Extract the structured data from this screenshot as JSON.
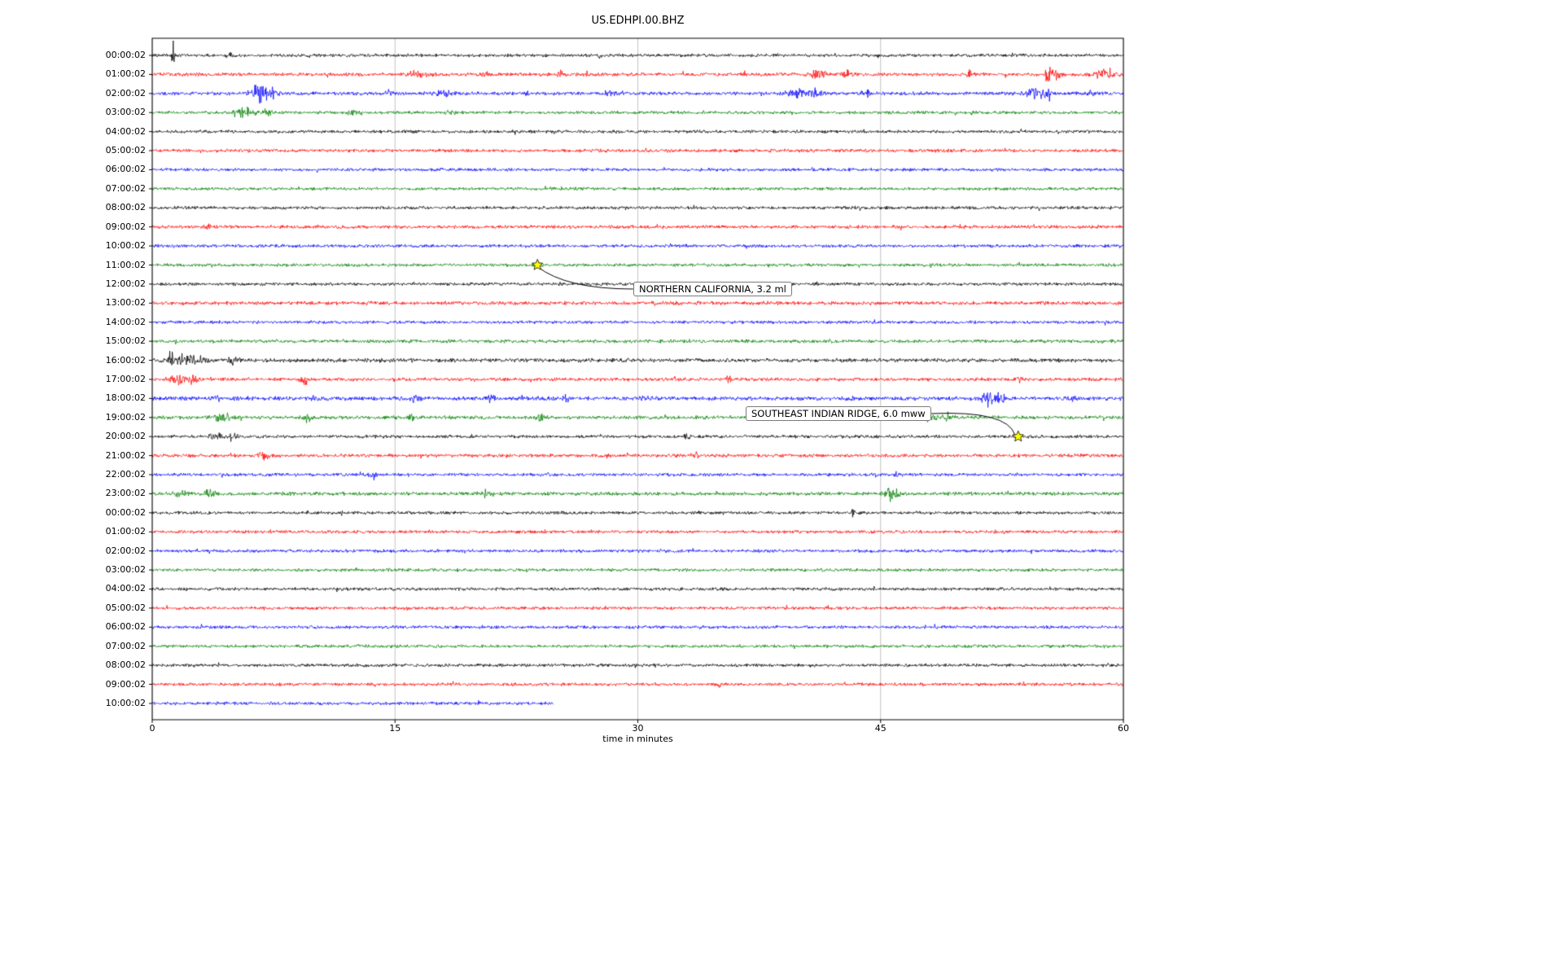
{
  "title": "US.EDHPI.00.BHZ",
  "xlabel": "time in minutes",
  "chart_data": {
    "type": "line",
    "subtype": "seismogram-dayplot",
    "title": "US.EDHPI.00.BHZ",
    "xlabel": "time in minutes",
    "xlim": [
      0,
      60
    ],
    "xticks": [
      "0",
      "15",
      "30",
      "45",
      "60"
    ],
    "grid": true,
    "grid_color": "#b3b3b3",
    "trace_color_cycle": [
      "#000000",
      "#ff0000",
      "#0000ff",
      "#008000"
    ],
    "star_color": "#ffff00",
    "traces": [
      {
        "label": "00:00:02",
        "color": "#000000",
        "amp": 1.0,
        "end": 60,
        "bursts": [
          {
            "t": 1.3,
            "a": 9,
            "w": 0.1
          },
          {
            "t": 4.7,
            "a": 2.5,
            "w": 0.2
          },
          {
            "t": 27.6,
            "a": 2.2,
            "w": 0.15
          }
        ]
      },
      {
        "label": "01:00:02",
        "color": "#ff0000",
        "amp": 1.1,
        "end": 60,
        "bursts": [
          {
            "t": 16.3,
            "a": 3,
            "w": 0.4
          },
          {
            "t": 17.2,
            "a": 2.5,
            "w": 0.2
          },
          {
            "t": 20.6,
            "a": 2.2,
            "w": 0.2
          },
          {
            "t": 25.2,
            "a": 3,
            "w": 0.15
          },
          {
            "t": 26.8,
            "a": 2.5,
            "w": 0.15
          },
          {
            "t": 36.6,
            "a": 2.2,
            "w": 0.15
          },
          {
            "t": 41.2,
            "a": 4,
            "w": 0.5
          },
          {
            "t": 43,
            "a": 3,
            "w": 0.3
          },
          {
            "t": 50.6,
            "a": 6,
            "w": 0.2
          },
          {
            "t": 55.4,
            "a": 8,
            "w": 0.3
          },
          {
            "t": 55.9,
            "a": 6,
            "w": 0.2
          },
          {
            "t": 58.8,
            "a": 4,
            "w": 0.6
          }
        ]
      },
      {
        "label": "02:00:02",
        "color": "#0000ff",
        "amp": 1.1,
        "end": 60,
        "bursts": [
          {
            "t": 6.6,
            "a": 9,
            "w": 0.5
          },
          {
            "t": 7.4,
            "a": 6,
            "w": 0.3
          },
          {
            "t": 14.6,
            "a": 2.5,
            "w": 0.3
          },
          {
            "t": 18,
            "a": 3,
            "w": 0.4
          },
          {
            "t": 23.2,
            "a": 2.2,
            "w": 0.2
          },
          {
            "t": 28.2,
            "a": 3,
            "w": 0.3
          },
          {
            "t": 39.8,
            "a": 3.5,
            "w": 0.6
          },
          {
            "t": 41,
            "a": 3,
            "w": 0.3
          },
          {
            "t": 44.2,
            "a": 2.5,
            "w": 0.2
          },
          {
            "t": 54.6,
            "a": 7,
            "w": 0.5
          },
          {
            "t": 55.4,
            "a": 5,
            "w": 0.3
          },
          {
            "t": 58,
            "a": 2.5,
            "w": 0.2
          }
        ]
      },
      {
        "label": "03:00:02",
        "color": "#008000",
        "amp": 1.0,
        "end": 60,
        "bursts": [
          {
            "t": 5.6,
            "a": 5,
            "w": 0.6
          },
          {
            "t": 7.1,
            "a": 7,
            "w": 0.25
          },
          {
            "t": 12.6,
            "a": 2.5,
            "w": 0.5
          },
          {
            "t": 18.4,
            "a": 2,
            "w": 0.3
          }
        ]
      },
      {
        "label": "04:00:02",
        "color": "#000000",
        "amp": 1.0,
        "end": 60,
        "bursts": [
          {
            "t": 22.4,
            "a": 2.5,
            "w": 0.15
          }
        ]
      },
      {
        "label": "05:00:02",
        "color": "#ff0000",
        "amp": 1.05,
        "end": 60,
        "bursts": []
      },
      {
        "label": "06:00:02",
        "color": "#0000ff",
        "amp": 1.0,
        "end": 60,
        "bursts": []
      },
      {
        "label": "07:00:02",
        "color": "#008000",
        "amp": 1.0,
        "end": 60,
        "bursts": []
      },
      {
        "label": "08:00:02",
        "color": "#000000",
        "amp": 1.0,
        "end": 60,
        "bursts": []
      },
      {
        "label": "09:00:02",
        "color": "#ff0000",
        "amp": 1.05,
        "end": 60,
        "bursts": [
          {
            "t": 3.4,
            "a": 2,
            "w": 0.2
          }
        ]
      },
      {
        "label": "10:00:02",
        "color": "#0000ff",
        "amp": 1.0,
        "end": 60,
        "bursts": []
      },
      {
        "label": "11:00:02",
        "color": "#008000",
        "amp": 1.0,
        "end": 60,
        "bursts": [
          {
            "t": 23.8,
            "a": 2.5,
            "w": 0.25
          }
        ]
      },
      {
        "label": "12:00:02",
        "color": "#000000",
        "amp": 1.0,
        "end": 60,
        "bursts": []
      },
      {
        "label": "13:00:02",
        "color": "#ff0000",
        "amp": 1.15,
        "end": 60,
        "bursts": []
      },
      {
        "label": "14:00:02",
        "color": "#0000ff",
        "amp": 1.0,
        "end": 60,
        "bursts": [
          {
            "t": 44.6,
            "a": 2,
            "w": 0.2
          }
        ]
      },
      {
        "label": "15:00:02",
        "color": "#008000",
        "amp": 1.1,
        "end": 60,
        "bursts": []
      },
      {
        "label": "16:00:02",
        "color": "#000000",
        "amp": 1.25,
        "end": 60,
        "bursts": [
          {
            "t": 1.2,
            "a": 11,
            "w": 0.15
          },
          {
            "t": 1.9,
            "a": 5,
            "w": 0.4
          },
          {
            "t": 2.9,
            "a": 4,
            "w": 0.5
          },
          {
            "t": 5.1,
            "a": 2.5,
            "w": 0.4
          }
        ]
      },
      {
        "label": "17:00:02",
        "color": "#ff0000",
        "amp": 1.1,
        "end": 60,
        "bursts": [
          {
            "t": 1.6,
            "a": 4,
            "w": 0.6
          },
          {
            "t": 2.6,
            "a": 3.5,
            "w": 0.4
          },
          {
            "t": 9.4,
            "a": 6,
            "w": 0.2
          },
          {
            "t": 35.6,
            "a": 2.5,
            "w": 0.2
          },
          {
            "t": 53.6,
            "a": 2,
            "w": 0.2
          }
        ]
      },
      {
        "label": "18:00:02",
        "color": "#0000ff",
        "amp": 1.3,
        "end": 60,
        "bursts": [
          {
            "t": 4,
            "a": 2.5,
            "w": 0.3
          },
          {
            "t": 10,
            "a": 2.5,
            "w": 0.25
          },
          {
            "t": 16.2,
            "a": 3,
            "w": 0.3
          },
          {
            "t": 21,
            "a": 3.5,
            "w": 0.25
          },
          {
            "t": 25.6,
            "a": 2.5,
            "w": 0.2
          },
          {
            "t": 30.4,
            "a": 3,
            "w": 0.25
          },
          {
            "t": 43,
            "a": 2.5,
            "w": 0.2
          },
          {
            "t": 51.6,
            "a": 6,
            "w": 0.4
          },
          {
            "t": 52.4,
            "a": 4,
            "w": 0.3
          },
          {
            "t": 57,
            "a": 2.5,
            "w": 0.2
          }
        ]
      },
      {
        "label": "19:00:02",
        "color": "#008000",
        "amp": 1.15,
        "end": 60,
        "bursts": [
          {
            "t": 4.4,
            "a": 4,
            "w": 0.5
          },
          {
            "t": 9.6,
            "a": 3.5,
            "w": 0.25
          },
          {
            "t": 16,
            "a": 2.5,
            "w": 0.25
          },
          {
            "t": 24,
            "a": 2.5,
            "w": 0.3
          },
          {
            "t": 47.8,
            "a": 3.5,
            "w": 0.6
          },
          {
            "t": 49.2,
            "a": 2.5,
            "w": 0.3
          }
        ]
      },
      {
        "label": "20:00:02",
        "color": "#000000",
        "amp": 1.0,
        "end": 60,
        "bursts": [
          {
            "t": 3.9,
            "a": 3.5,
            "w": 0.4
          },
          {
            "t": 5.1,
            "a": 3.5,
            "w": 0.3
          },
          {
            "t": 33,
            "a": 2,
            "w": 0.2
          },
          {
            "t": 53.5,
            "a": 1.8,
            "w": 0.15
          }
        ]
      },
      {
        "label": "21:00:02",
        "color": "#ff0000",
        "amp": 1.1,
        "end": 60,
        "bursts": [
          {
            "t": 6.9,
            "a": 3.5,
            "w": 0.3
          },
          {
            "t": 28.1,
            "a": 2.5,
            "w": 0.2
          },
          {
            "t": 33.6,
            "a": 2,
            "w": 0.15
          }
        ]
      },
      {
        "label": "22:00:02",
        "color": "#0000ff",
        "amp": 1.0,
        "end": 60,
        "bursts": [
          {
            "t": 13.6,
            "a": 3.5,
            "w": 0.2
          },
          {
            "t": 46,
            "a": 2.5,
            "w": 0.3
          }
        ]
      },
      {
        "label": "23:00:02",
        "color": "#008000",
        "amp": 1.15,
        "end": 60,
        "bursts": [
          {
            "t": 1.6,
            "a": 3.5,
            "w": 0.4
          },
          {
            "t": 3.6,
            "a": 4,
            "w": 0.3
          },
          {
            "t": 20.6,
            "a": 4,
            "w": 0.4
          },
          {
            "t": 45.7,
            "a": 7,
            "w": 0.35
          }
        ]
      },
      {
        "label": "00:00:02",
        "color": "#000000",
        "amp": 1.0,
        "end": 60,
        "bursts": [
          {
            "t": 9.6,
            "a": 2,
            "w": 0.15
          },
          {
            "t": 43.3,
            "a": 3.5,
            "w": 0.1
          }
        ]
      },
      {
        "label": "01:00:02",
        "color": "#ff0000",
        "amp": 1.0,
        "end": 60,
        "bursts": []
      },
      {
        "label": "02:00:02",
        "color": "#0000ff",
        "amp": 1.0,
        "end": 60,
        "bursts": [
          {
            "t": 31.6,
            "a": 2.2,
            "w": 0.2
          }
        ]
      },
      {
        "label": "03:00:02",
        "color": "#008000",
        "amp": 1.0,
        "end": 60,
        "bursts": []
      },
      {
        "label": "04:00:02",
        "color": "#000000",
        "amp": 1.0,
        "end": 60,
        "bursts": []
      },
      {
        "label": "05:00:02",
        "color": "#ff0000",
        "amp": 1.0,
        "end": 60,
        "bursts": []
      },
      {
        "label": "06:00:02",
        "color": "#0000ff",
        "amp": 1.0,
        "end": 60,
        "bursts": []
      },
      {
        "label": "07:00:02",
        "color": "#008000",
        "amp": 1.0,
        "end": 60,
        "bursts": []
      },
      {
        "label": "08:00:02",
        "color": "#000000",
        "amp": 1.0,
        "end": 60,
        "bursts": []
      },
      {
        "label": "09:00:02",
        "color": "#ff0000",
        "amp": 1.0,
        "end": 60,
        "bursts": [
          {
            "t": 35,
            "a": 3.5,
            "w": 0.1
          }
        ]
      },
      {
        "label": "10:00:02",
        "color": "#0000ff",
        "amp": 1.0,
        "end": 24.8,
        "bursts": []
      }
    ],
    "events": [
      {
        "label": "NORTHERN CALIFORNIA, 3.2 ml",
        "trace_index": 11,
        "minute": 23.8
      },
      {
        "label": "SOUTHEAST INDIAN RIDGE, 6.0 mww",
        "trace_index": 20,
        "minute": 53.5
      }
    ]
  }
}
